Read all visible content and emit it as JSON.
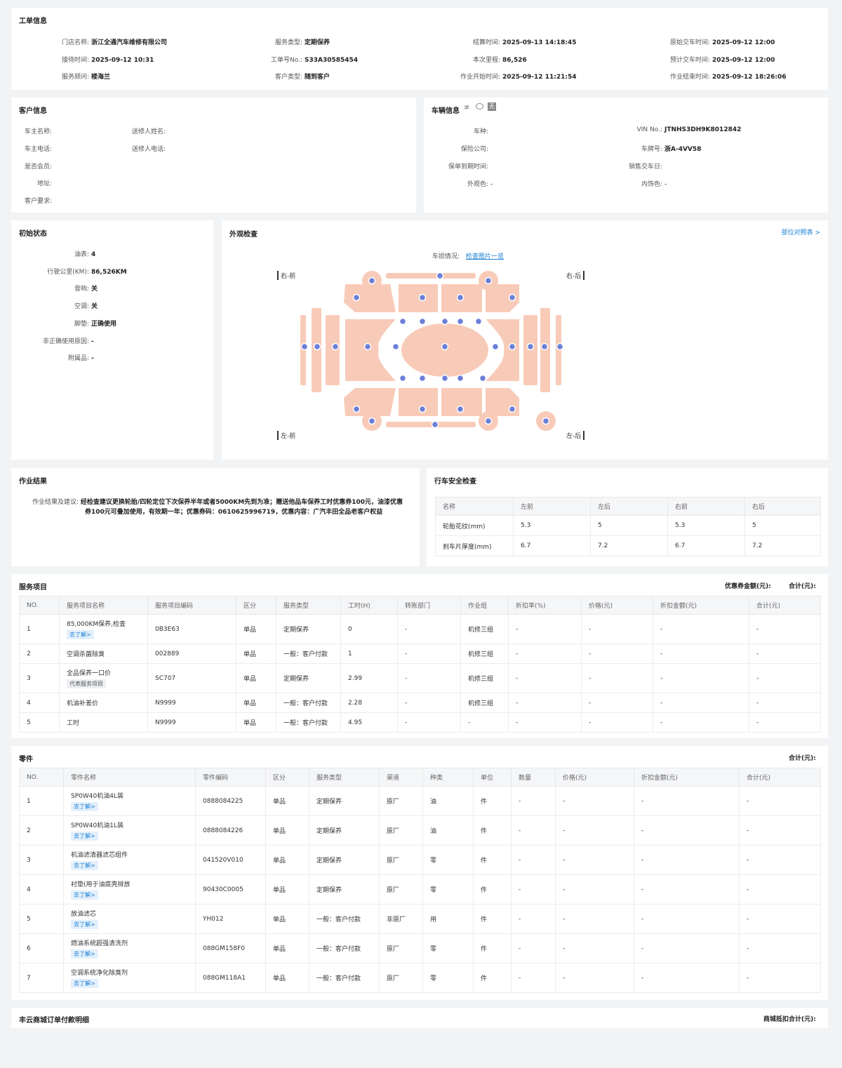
{
  "work_order": {
    "title": "工单信息",
    "rows": [
      [
        {
          "label": "门店名称:",
          "value": "浙江全通汽车维修有限公司"
        },
        {
          "label": "服务类型:",
          "value": "定期保养"
        },
        {
          "label": "结算时间:",
          "value": "2025-09-13 14:18:45"
        },
        {
          "label": "原始交车时间:",
          "value": "2025-09-12 12:00"
        }
      ],
      [
        {
          "label": "接待时间:",
          "value": "2025-09-12 10:31"
        },
        {
          "label": "工单号No.:",
          "value": "S33A30585454"
        },
        {
          "label": "本次里程:",
          "value": "86,526"
        },
        {
          "label": "预计交车时间:",
          "value": "2025-09-12 12:00"
        }
      ],
      [
        {
          "label": "服务顾问:",
          "value": "楼海兰"
        },
        {
          "label": "客户类型:",
          "value": "随到客户"
        },
        {
          "label": "作业开始时间:",
          "value": "2025-09-12 11:21:54"
        },
        {
          "label": "作业结束时间:",
          "value": "2025-09-12 18:26:06"
        }
      ]
    ]
  },
  "customer": {
    "title": "客户信息",
    "owner_name_label": "车主名称:",
    "sender_name_label": "送修人姓名:",
    "owner_phone_label": "车主电话:",
    "sender_phone_label": "送修人电话:",
    "member_label": "是否会员:",
    "address_label": "地址:",
    "request_label": "客户要求:"
  },
  "vehicle": {
    "title": "车辆信息",
    "icons": [
      "steering-icon",
      "chat-icon",
      "none-badge"
    ],
    "none_badge": "无",
    "left": [
      {
        "label": "车种:",
        "value": ""
      },
      {
        "label": "保险公司:",
        "value": ""
      },
      {
        "label": "保单到期时间:",
        "value": ""
      },
      {
        "label": "外观色:",
        "value": "-"
      }
    ],
    "right": [
      {
        "label": "VIN No.:",
        "value": "JTNHS3DH9K8012842"
      },
      {
        "label": "车牌号:",
        "value": "浙A-4VV58"
      },
      {
        "label": "销售交车日:",
        "value": ""
      },
      {
        "label": "内饰色:",
        "value": "-"
      }
    ]
  },
  "initial_state": {
    "title": "初始状态",
    "items": [
      {
        "label": "油表:",
        "value": "4"
      },
      {
        "label": "行驶公里(KM):",
        "value": "86,526KM"
      },
      {
        "label": "音响:",
        "value": "关"
      },
      {
        "label": "空调:",
        "value": "关"
      },
      {
        "label": "脚垫:",
        "value": "正确使用"
      },
      {
        "label": "非正确使用原因:",
        "value": "-"
      },
      {
        "label": "附属品:",
        "value": "-"
      }
    ]
  },
  "appearance": {
    "title": "外观检查",
    "ref_link": "部位对照表 >",
    "damage_label": "车损情况:",
    "damage_link": "检查图片一览",
    "corner_rf": "右-前",
    "corner_rr": "右-后",
    "corner_lf": "左-前",
    "corner_lr": "左-后",
    "body_color": "#f8cbb8",
    "dot_color": "#6b7fd8"
  },
  "work_result": {
    "title": "作业结果",
    "label": "作业结果及建议:",
    "line1": "经检查建议更换轮胎/四轮定位下次保养半年或者5000KM先到为准；赠送他品车保养工时优惠券100元，油漆优惠",
    "line2": "券100元可叠加使用，有效期一年；优惠券码：0610625996719，优惠内容：广汽丰田全品老客户权益"
  },
  "safety": {
    "title": "行车安全检查",
    "headers": [
      "名称",
      "左前",
      "左后",
      "右前",
      "右后"
    ],
    "rows": [
      [
        "轮胎花纹(mm)",
        "5.3",
        "5",
        "5.3",
        "5"
      ],
      [
        "刹车片厚度(mm)",
        "6.7",
        "7.2",
        "6.7",
        "7.2"
      ]
    ]
  },
  "services": {
    "title": "服务项目",
    "coupon_label": "优惠券金额(元):",
    "total_label": "合计(元):",
    "headers": [
      "NO.",
      "服务项目名称",
      "服务项目编码",
      "区分",
      "服务类型",
      "工时(H)",
      "转账部门",
      "作业组",
      "折扣率(%)",
      "价格(元)",
      "折扣金额(元)",
      "合计(元)"
    ],
    "rows": [
      {
        "no": "1",
        "name": "85,000KM保养,检查",
        "tag": "去了解>",
        "code": "0B3E63",
        "type": "单品",
        "svc": "定期保养",
        "hours": "0",
        "dept": "-",
        "group": "机修三组",
        "rate": "-",
        "price": "-",
        "disc": "-",
        "total": "-"
      },
      {
        "no": "2",
        "name": "空调杀菌除臭",
        "tag": "",
        "code": "002889",
        "type": "单品",
        "svc": "一般：客户付款",
        "hours": "1",
        "dept": "-",
        "group": "机修三组",
        "rate": "-",
        "price": "-",
        "disc": "-",
        "total": "-"
      },
      {
        "no": "3",
        "name": "全品保养一口价",
        "tag2": "代表服务项目",
        "code": "SC707",
        "type": "单品",
        "svc": "定期保养",
        "hours": "2.99",
        "dept": "-",
        "group": "机修三组",
        "rate": "-",
        "price": "-",
        "disc": "-",
        "total": "-"
      },
      {
        "no": "4",
        "name": "机油补差价",
        "tag": "",
        "code": "N9999",
        "type": "单品",
        "svc": "一般：客户付款",
        "hours": "2.28",
        "dept": "-",
        "group": "机修三组",
        "rate": "-",
        "price": "-",
        "disc": "-",
        "total": "-"
      },
      {
        "no": "5",
        "name": "工时",
        "tag": "",
        "code": "N9999",
        "type": "单品",
        "svc": "一般：客户付款",
        "hours": "4.95",
        "dept": "-",
        "group": "-",
        "rate": "-",
        "price": "-",
        "disc": "-",
        "total": "-"
      }
    ]
  },
  "parts": {
    "title": "零件",
    "total_label": "合计(元):",
    "headers": [
      "NO.",
      "零件名称",
      "零件编码",
      "区分",
      "服务类型",
      "渠道",
      "种类",
      "单位",
      "数量",
      "价格(元)",
      "折扣金额(元)",
      "合计(元)"
    ],
    "rows": [
      {
        "no": "1",
        "name": "SP0W40机油4L装",
        "tag": "去了解>",
        "code": "0888084225",
        "type": "单品",
        "svc": "定期保养",
        "ch": "原厂",
        "kind": "油",
        "unit": "件",
        "qty": "-",
        "price": "-",
        "disc": "-",
        "total": "-"
      },
      {
        "no": "2",
        "name": "SP0W40机油1L装",
        "tag": "去了解>",
        "code": "0888084226",
        "type": "单品",
        "svc": "定期保养",
        "ch": "原厂",
        "kind": "油",
        "unit": "件",
        "qty": "-",
        "price": "-",
        "disc": "-",
        "total": "-"
      },
      {
        "no": "3",
        "name": "机油滤清器滤芯组件",
        "tag": "去了解>",
        "code": "041520V010",
        "type": "单品",
        "svc": "定期保养",
        "ch": "原厂",
        "kind": "零",
        "unit": "件",
        "qty": "-",
        "price": "-",
        "disc": "-",
        "total": "-"
      },
      {
        "no": "4",
        "name": "衬垫(用于油底壳排放",
        "tag": "去了解>",
        "code": "90430C0005",
        "type": "单品",
        "svc": "定期保养",
        "ch": "原厂",
        "kind": "零",
        "unit": "件",
        "qty": "-",
        "price": "-",
        "disc": "-",
        "total": "-"
      },
      {
        "no": "5",
        "name": "放油滤芯",
        "tag": "去了解>",
        "code": "YH012",
        "type": "单品",
        "svc": "一般：客户付款",
        "ch": "非原厂",
        "kind": "用",
        "unit": "件",
        "qty": "-",
        "price": "-",
        "disc": "-",
        "total": "-"
      },
      {
        "no": "6",
        "name": "燃油系统超强清洗剂",
        "tag": "去了解>",
        "code": "088GM158F0",
        "type": "单品",
        "svc": "一般：客户付款",
        "ch": "原厂",
        "kind": "零",
        "unit": "件",
        "qty": "-",
        "price": "-",
        "disc": "-",
        "total": "-"
      },
      {
        "no": "7",
        "name": "空调系统净化除臭剂",
        "tag": "去了解>",
        "code": "088GM118A1",
        "type": "单品",
        "svc": "一般：客户付款",
        "ch": "原厂",
        "kind": "零",
        "unit": "件",
        "qty": "-",
        "price": "-",
        "disc": "-",
        "total": "-"
      }
    ]
  },
  "mall": {
    "title": "丰云商城订单付款明细",
    "total_label": "商城抵扣合计(元):"
  }
}
